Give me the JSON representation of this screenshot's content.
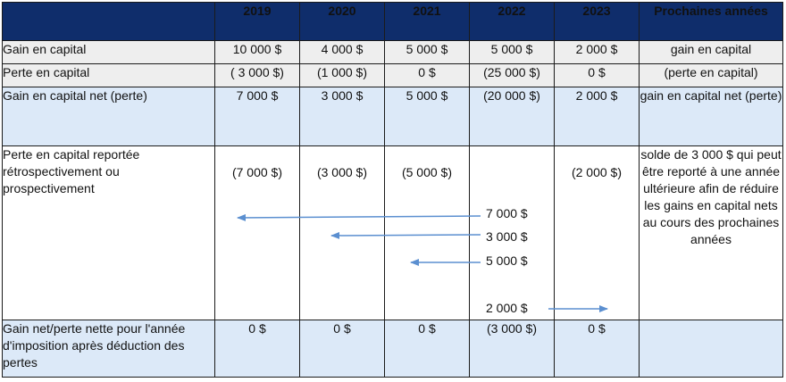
{
  "table": {
    "headers": [
      "",
      "2019",
      "2020",
      "2021",
      "2022",
      "2023",
      "Prochaines années"
    ],
    "rows": {
      "gain": {
        "label": "Gain en capital",
        "values": [
          "10 000 $",
          "4 000 $",
          "5 000 $",
          "5 000 $",
          "2 000 $",
          "gain en capital"
        ]
      },
      "perte": {
        "label": "Perte en capital",
        "values": [
          "( 3 000 $)",
          "(1 000 $)",
          "0 $",
          "(25 000 $)",
          "0 $",
          "(perte en capital)"
        ]
      },
      "net": {
        "label": "Gain en capital net (perte)",
        "values": [
          "7 000 $",
          "3 000 $",
          "5 000 $",
          "(20 000 $)",
          "2 000 $",
          "gain en capital net (perte)"
        ]
      },
      "carry": {
        "label": "Perte en capital reportée rétrospectivement ou prospectivement",
        "values": [
          "(7 000 $)",
          "(3 000 $)",
          "(5 000 $)",
          "",
          "(2 000 $)",
          "solde de 3 000 $ qui peut être reporté à une année ultérieure afin de réduire les gains en capital nets au cours des prochaines années"
        ],
        "applied_from_2022": [
          "7 000 $",
          "3 000 $",
          "5 000 $",
          "2 000 $"
        ]
      },
      "final": {
        "label": "Gain net/perte nette pour l'année d'imposition après déduction des pertes",
        "values": [
          "0 $",
          "0 $",
          "0 $",
          "(3 000 $)",
          "0 $",
          ""
        ]
      }
    }
  },
  "colors": {
    "header_bg": "#0f2d6b",
    "header_text": "#ffffff",
    "grey_row": "#eeeeee",
    "blue_row": "#dce9f8",
    "arrow": "#5b8fd0"
  }
}
